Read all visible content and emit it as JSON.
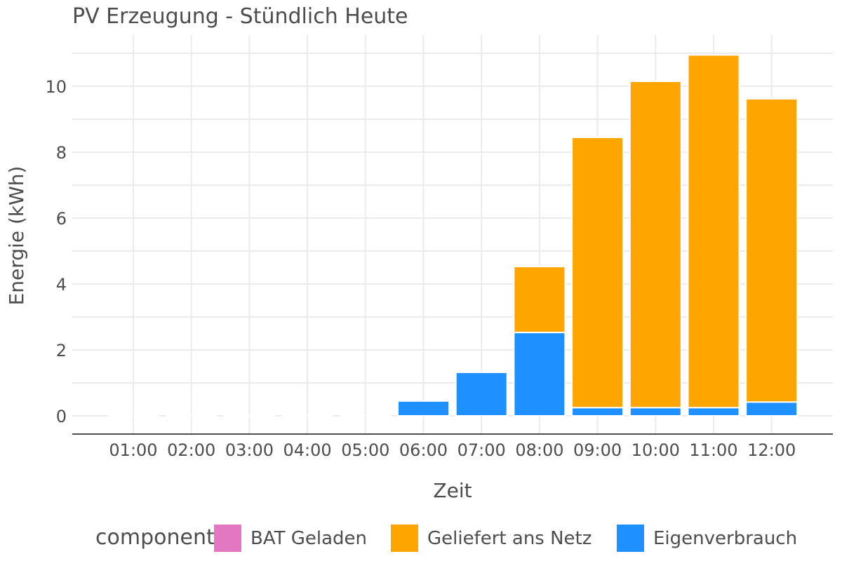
{
  "chart_data": {
    "type": "bar",
    "stacked": true,
    "title": "PV Erzeugung - Stündlich Heute",
    "xlabel": "Zeit",
    "ylabel": "Energie (kWh)",
    "ylim": [
      -0.5,
      11.4
    ],
    "yticks": [
      0,
      2,
      4,
      6,
      8,
      10
    ],
    "categories": [
      "01:00",
      "02:00",
      "03:00",
      "04:00",
      "05:00",
      "06:00",
      "07:00",
      "08:00",
      "09:00",
      "10:00",
      "11:00",
      "12:00"
    ],
    "series": [
      {
        "name": "BAT Geladen",
        "color": "#e377c2",
        "values": [
          0,
          0,
          0,
          0,
          0,
          0,
          0,
          0,
          0,
          0,
          0,
          0
        ]
      },
      {
        "name": "Geliefert ans Netz",
        "color": "#ffa500",
        "values": [
          0,
          0,
          0,
          0,
          0,
          0,
          0,
          2.0,
          8.2,
          9.9,
          10.7,
          9.2
        ]
      },
      {
        "name": "Eigenverbrauch",
        "color": "#1e90ff",
        "values": [
          0,
          0,
          0,
          0,
          0,
          0.45,
          1.32,
          2.53,
          0.25,
          0.25,
          0.25,
          0.42
        ]
      }
    ],
    "grid": true,
    "legend": {
      "position": "bottom",
      "title": "component",
      "items": [
        "BAT Geladen",
        "Geliefert ans Netz",
        "Eigenverbrauch"
      ]
    }
  }
}
